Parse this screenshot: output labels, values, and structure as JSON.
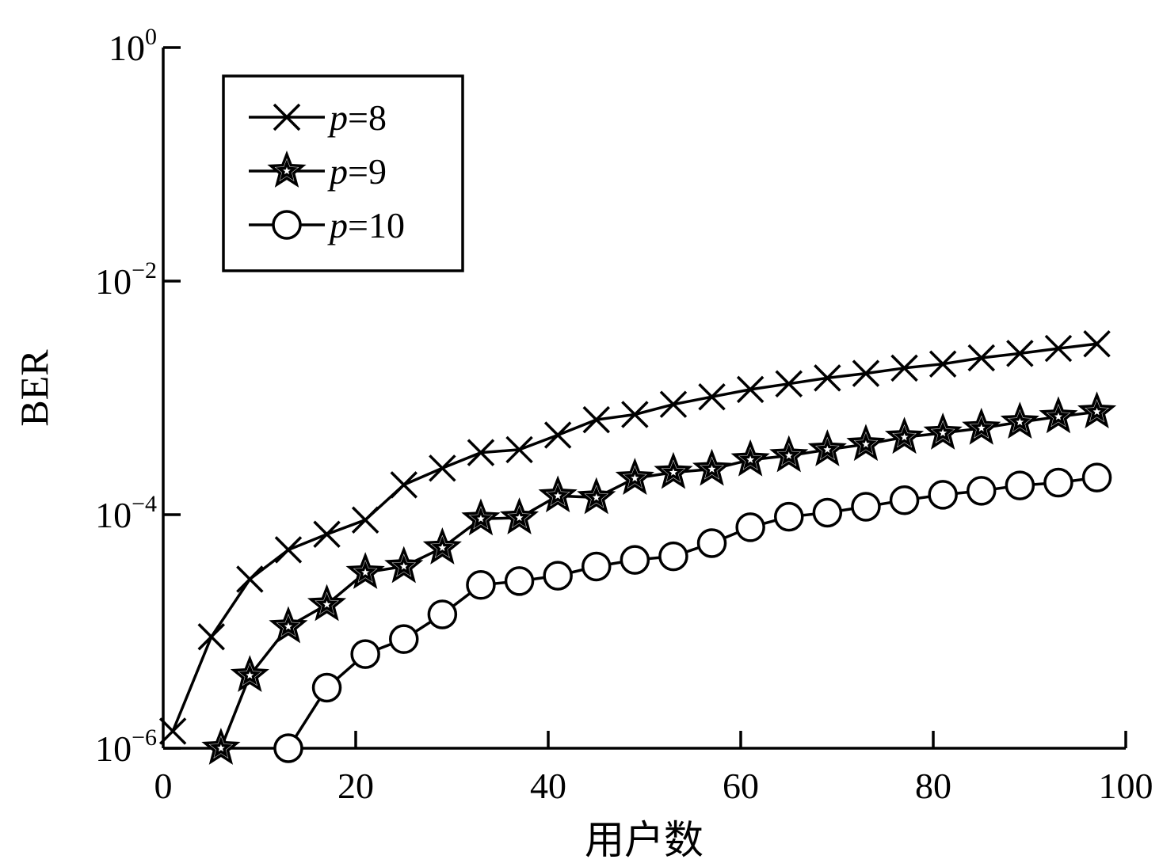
{
  "chart_data": {
    "type": "line",
    "xlabel": "用户数",
    "ylabel": "BER",
    "xlim": [
      0,
      100
    ],
    "ylim": [
      1e-06,
      1
    ],
    "yscale": "log",
    "xticks": [
      "0",
      "20",
      "40",
      "60",
      "80",
      "100"
    ],
    "yticks": [
      {
        "base": "10",
        "exp": "0"
      },
      {
        "base": "10",
        "exp": "−2"
      },
      {
        "base": "10",
        "exp": "−4"
      },
      {
        "base": "10",
        "exp": "−6"
      }
    ],
    "grid": false,
    "legend_position": "top-left",
    "series": [
      {
        "name": "p=8",
        "name_var": "p",
        "name_val": "=8",
        "marker": "x",
        "x": [
          1,
          5,
          9,
          13,
          17,
          21,
          25,
          29,
          33,
          37,
          41,
          45,
          49,
          53,
          57,
          61,
          65,
          69,
          73,
          77,
          81,
          85,
          89,
          93,
          97
        ],
        "y": [
          1.4e-06,
          9e-06,
          2.8e-05,
          5e-05,
          6.8e-05,
          9e-05,
          0.00018,
          0.00025,
          0.00034,
          0.00036,
          0.00048,
          0.00065,
          0.00072,
          0.00088,
          0.00102,
          0.00118,
          0.00132,
          0.00148,
          0.00162,
          0.0018,
          0.00195,
          0.0022,
          0.0024,
          0.00265,
          0.0029
        ]
      },
      {
        "name": "p=9",
        "name_var": "p",
        "name_val": "=9",
        "marker": "star",
        "x": [
          6,
          9,
          13,
          17,
          21,
          25,
          29,
          33,
          37,
          41,
          45,
          49,
          53,
          57,
          61,
          65,
          69,
          73,
          77,
          81,
          85,
          89,
          93,
          97
        ],
        "y": [
          1e-06,
          4.2e-06,
          1.1e-05,
          1.7e-05,
          3.2e-05,
          3.6e-05,
          5.2e-05,
          9.2e-05,
          9.4e-05,
          0.000145,
          0.00014,
          0.000205,
          0.00023,
          0.000245,
          0.000295,
          0.00032,
          0.00036,
          0.0004,
          0.00046,
          0.0005,
          0.00055,
          0.00062,
          0.00069,
          0.00076
        ]
      },
      {
        "name": "p=10",
        "name_var": "p",
        "name_val": "=10",
        "marker": "circle",
        "x": [
          13,
          17,
          21,
          25,
          29,
          33,
          37,
          41,
          45,
          49,
          53,
          57,
          61,
          65,
          69,
          73,
          77,
          81,
          85,
          89,
          93,
          97
        ],
        "y": [
          1e-06,
          3.3e-06,
          6.4e-06,
          8.6e-06,
          1.4e-05,
          2.5e-05,
          2.7e-05,
          3e-05,
          3.6e-05,
          4.1e-05,
          4.4e-05,
          5.7e-05,
          7.8e-05,
          9.6e-05,
          0.000104,
          0.000117,
          0.000133,
          0.000148,
          0.00016,
          0.000178,
          0.000188,
          0.000208
        ]
      }
    ]
  }
}
